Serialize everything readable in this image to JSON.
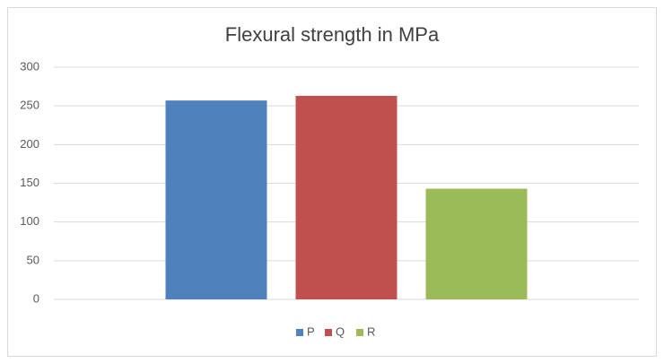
{
  "chart_data": {
    "type": "bar",
    "title": "Flexural strength in MPa",
    "categories": [
      null
    ],
    "series": [
      {
        "name": "P",
        "color": "#4f81bd",
        "values": [
          257
        ]
      },
      {
        "name": "Q",
        "color": "#c0504d",
        "values": [
          263
        ]
      },
      {
        "name": "R",
        "color": "#9bbb59",
        "values": [
          143
        ]
      }
    ],
    "ylim": [
      0,
      300
    ],
    "yticks": [
      0,
      50,
      100,
      150,
      200,
      250,
      300
    ],
    "grid": true,
    "legend": "bottom"
  }
}
